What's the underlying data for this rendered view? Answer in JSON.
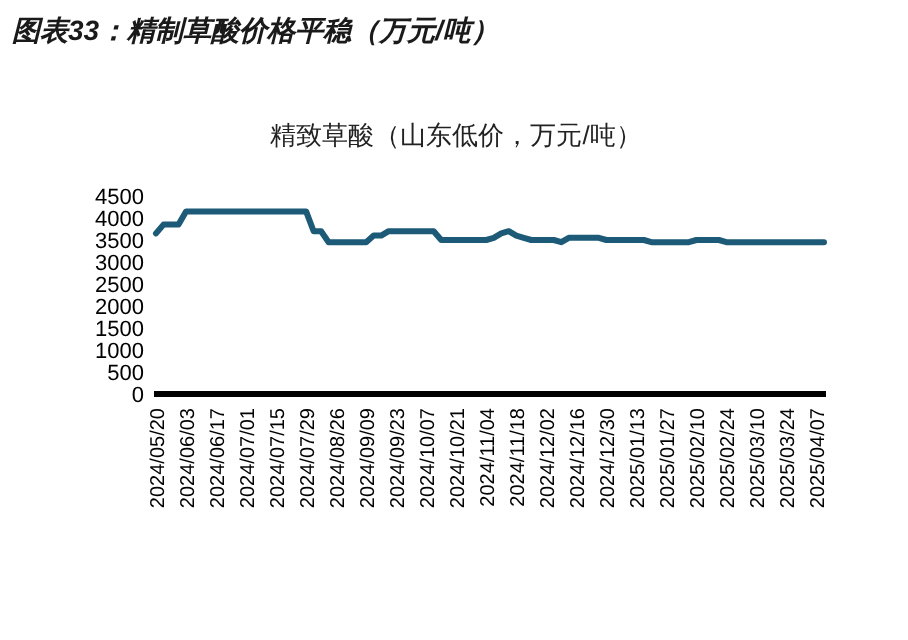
{
  "chart_data": {
    "type": "line",
    "title": "图表33：精制草酸价格平稳（万元/吨）",
    "subtitle": "精致草酸（山东低价，万元/吨）",
    "categories": [
      "2024/05/20",
      null,
      null,
      null,
      "2024/06/03",
      null,
      null,
      null,
      "2024/06/17",
      null,
      null,
      null,
      "2024/07/01",
      null,
      null,
      null,
      "2024/07/15",
      null,
      null,
      null,
      "2024/07/29",
      null,
      null,
      null,
      "2024/08/26",
      null,
      null,
      null,
      "2024/09/09",
      null,
      null,
      null,
      "2024/09/23",
      null,
      null,
      null,
      "2024/10/07",
      null,
      null,
      null,
      "2024/10/21",
      null,
      null,
      null,
      "2024/11/04",
      null,
      null,
      null,
      "2024/11/18",
      null,
      null,
      null,
      "2024/12/02",
      null,
      null,
      null,
      "2024/12/16",
      null,
      null,
      null,
      "2024/12/30",
      null,
      null,
      null,
      "2025/01/13",
      null,
      null,
      null,
      "2025/01/27",
      null,
      null,
      null,
      "2025/02/10",
      null,
      null,
      null,
      "2025/02/24",
      null,
      null,
      null,
      "2025/03/10",
      null,
      null,
      null,
      "2025/03/24",
      null,
      null,
      null,
      "2025/04/07",
      null
    ],
    "series": [
      {
        "color": "#1d5a78",
        "values": [
          3650,
          3850,
          3850,
          3850,
          4150,
          4150,
          4150,
          4150,
          4150,
          4150,
          4150,
          4150,
          4150,
          4150,
          4150,
          4150,
          4150,
          4150,
          4150,
          4150,
          4150,
          3700,
          3700,
          3450,
          3450,
          3450,
          3450,
          3450,
          3450,
          3600,
          3600,
          3700,
          3700,
          3700,
          3700,
          3700,
          3700,
          3700,
          3500,
          3500,
          3500,
          3500,
          3500,
          3500,
          3500,
          3550,
          3650,
          3700,
          3600,
          3550,
          3500,
          3500,
          3500,
          3500,
          3450,
          3550,
          3550,
          3550,
          3550,
          3550,
          3500,
          3500,
          3500,
          3500,
          3500,
          3500,
          3450,
          3450,
          3450,
          3450,
          3450,
          3450,
          3500,
          3500,
          3500,
          3500,
          3450,
          3450,
          3450,
          3450,
          3450,
          3450,
          3450,
          3450,
          3450,
          3450,
          3450,
          3450,
          3450,
          3450
        ]
      }
    ],
    "ylim": [
      0,
      4500
    ],
    "yticks": [
      0,
      500,
      1000,
      1500,
      2000,
      2500,
      3000,
      3500,
      4000,
      4500
    ]
  }
}
